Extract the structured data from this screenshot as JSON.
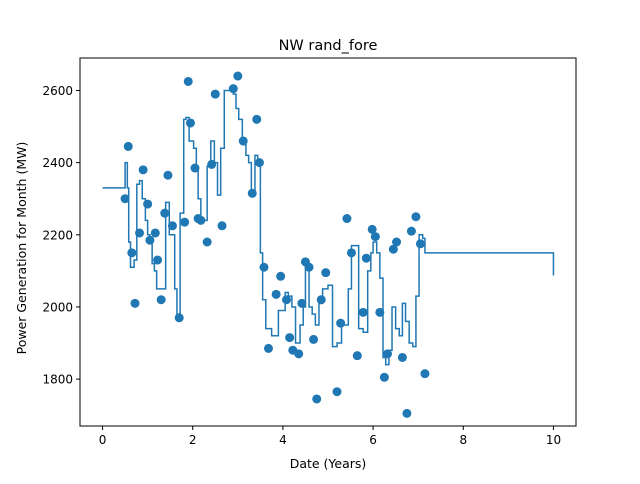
{
  "chart_data": {
    "type": "line",
    "title": "NW rand_fore",
    "xlabel": "Date (Years)",
    "ylabel": "Power Generation for Month (MW)",
    "xlim": [
      -0.5,
      10.5
    ],
    "ylim": [
      1670,
      2690
    ],
    "xticks": [
      0,
      2,
      4,
      6,
      8,
      10
    ],
    "yticks": [
      1800,
      2000,
      2200,
      2400,
      2600
    ],
    "grid": false,
    "legend": "none",
    "colors": {
      "series": "#1f77b4",
      "axes": "#000000",
      "background": "#ffffff"
    },
    "series": [
      {
        "kind": "step",
        "x": [
          0,
          0.5,
          0.55,
          0.58,
          0.62,
          0.66,
          0.7,
          0.76,
          0.82,
          0.88,
          0.95,
          1.0,
          1.05,
          1.1,
          1.15,
          1.2,
          1.3,
          1.4,
          1.48,
          1.52,
          1.6,
          1.65,
          1.72,
          1.8,
          1.85,
          1.92,
          2.02,
          2.08,
          2.12,
          2.18,
          2.25,
          2.32,
          2.4,
          2.48,
          2.55,
          2.62,
          2.7,
          2.82,
          2.9,
          2.96,
          3.02,
          3.1,
          3.18,
          3.24,
          3.3,
          3.38,
          3.44,
          3.5,
          3.55,
          3.62,
          3.75,
          3.9,
          4.05,
          4.12,
          4.2,
          4.28,
          4.38,
          4.45,
          4.5,
          4.58,
          4.65,
          4.72,
          4.8,
          4.88,
          5.0,
          5.1,
          5.2,
          5.3,
          5.45,
          5.52,
          5.6,
          5.68,
          5.78,
          5.88,
          5.95,
          6.0,
          6.08,
          6.15,
          6.22,
          6.28,
          6.35,
          6.42,
          6.5,
          6.58,
          6.65,
          6.72,
          6.8,
          6.88,
          6.95,
          7.02,
          7.1,
          7.15,
          10.0
        ],
        "y": [
          2330,
          2400,
          2330,
          2180,
          2110,
          2110,
          2130,
          2340,
          2350,
          2300,
          2240,
          2200,
          2180,
          2120,
          2100,
          2050,
          2050,
          2290,
          2200,
          2200,
          2050,
          1975,
          2260,
          2520,
          2525,
          2460,
          2440,
          2390,
          2300,
          2240,
          2240,
          2390,
          2460,
          2400,
          2310,
          2440,
          2600,
          2600,
          2590,
          2550,
          2520,
          2450,
          2420,
          2400,
          2320,
          2420,
          2400,
          2150,
          2020,
          1940,
          1920,
          1990,
          2040,
          2030,
          2000,
          1900,
          1950,
          2000,
          2120,
          2000,
          1980,
          1950,
          2010,
          2050,
          2060,
          1890,
          1900,
          1950,
          2050,
          2170,
          2170,
          1940,
          1930,
          2100,
          2150,
          2180,
          2150,
          2080,
          1860,
          1840,
          1880,
          2000,
          1940,
          1920,
          2010,
          1960,
          1900,
          1890,
          2030,
          2200,
          2190,
          2150,
          2087
        ]
      },
      {
        "kind": "scatter",
        "x": [
          0.5,
          0.57,
          0.65,
          0.72,
          0.82,
          0.9,
          1.0,
          1.05,
          1.17,
          1.22,
          1.3,
          1.38,
          1.45,
          1.55,
          1.7,
          1.82,
          1.9,
          1.95,
          2.05,
          2.12,
          2.18,
          2.32,
          2.42,
          2.5,
          2.65,
          2.9,
          3.0,
          3.12,
          3.32,
          3.42,
          3.48,
          3.58,
          3.68,
          3.85,
          3.95,
          4.08,
          4.15,
          4.22,
          4.35,
          4.42,
          4.5,
          4.58,
          4.68,
          4.75,
          4.85,
          4.95,
          5.2,
          5.28,
          5.42,
          5.52,
          5.65,
          5.78,
          5.85,
          5.98,
          6.05,
          6.15,
          6.25,
          6.32,
          6.45,
          6.52,
          6.65,
          6.75,
          6.85,
          6.95,
          7.05,
          7.15
        ],
        "y": [
          2300,
          2445,
          2150,
          2010,
          2205,
          2380,
          2285,
          2185,
          2205,
          2130,
          2020,
          2260,
          2365,
          2225,
          1970,
          2235,
          2625,
          2510,
          2385,
          2245,
          2240,
          2180,
          2395,
          2590,
          2225,
          2605,
          2640,
          2460,
          2315,
          2520,
          2400,
          2110,
          1885,
          2035,
          2085,
          2020,
          1915,
          1880,
          1870,
          2010,
          2125,
          2110,
          1910,
          1745,
          2020,
          2095,
          1765,
          1955,
          2245,
          2150,
          1865,
          1985,
          2135,
          2215,
          2195,
          1985,
          1805,
          1870,
          2160,
          2180,
          1860,
          1705,
          2210,
          2250,
          2175,
          1815
        ]
      }
    ]
  }
}
